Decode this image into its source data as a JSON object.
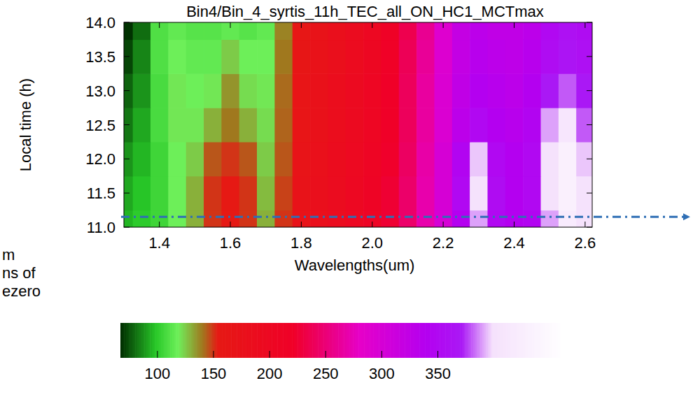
{
  "chart_data": {
    "type": "heatmap",
    "title": "Bin4/Bin_4_syrtis_11h_TEC_all_ON_HC1_MCTmax",
    "x_label": "Wavelengths(um)",
    "y_label": "Local time (h)",
    "x": [
      1.3,
      1.35,
      1.4,
      1.45,
      1.5,
      1.55,
      1.6,
      1.65,
      1.7,
      1.75,
      1.8,
      1.85,
      1.9,
      1.95,
      2.0,
      2.05,
      2.1,
      2.15,
      2.2,
      2.25,
      2.3,
      2.35,
      2.4,
      2.45,
      2.5,
      2.55,
      2.6
    ],
    "y": [
      11.0,
      11.5,
      12.0,
      12.5,
      13.0,
      13.5,
      14.0
    ],
    "values": [
      [
        95,
        100,
        105,
        118,
        130,
        150,
        155,
        150,
        130,
        150,
        170,
        180,
        190,
        200,
        210,
        225,
        245,
        270,
        300,
        340,
        390,
        350,
        340,
        345,
        390,
        420,
        400
      ],
      [
        92,
        98,
        105,
        118,
        130,
        150,
        155,
        150,
        128,
        148,
        170,
        180,
        190,
        200,
        210,
        225,
        245,
        270,
        300,
        350,
        400,
        355,
        340,
        350,
        400,
        430,
        400
      ],
      [
        88,
        95,
        105,
        118,
        125,
        145,
        150,
        145,
        125,
        145,
        168,
        178,
        188,
        198,
        208,
        222,
        242,
        268,
        300,
        345,
        395,
        350,
        340,
        350,
        400,
        430,
        395
      ],
      [
        82,
        92,
        108,
        120,
        120,
        130,
        140,
        130,
        122,
        143,
        165,
        175,
        185,
        195,
        205,
        220,
        240,
        265,
        295,
        330,
        350,
        340,
        335,
        345,
        390,
        410,
        380
      ],
      [
        78,
        88,
        108,
        120,
        118,
        120,
        135,
        122,
        120,
        142,
        165,
        175,
        185,
        195,
        205,
        220,
        240,
        265,
        295,
        325,
        340,
        335,
        330,
        340,
        370,
        380,
        370
      ],
      [
        72,
        85,
        110,
        118,
        115,
        115,
        125,
        118,
        118,
        140,
        162,
        172,
        182,
        192,
        202,
        218,
        238,
        262,
        292,
        322,
        335,
        330,
        328,
        335,
        355,
        365,
        360
      ],
      [
        68,
        80,
        110,
        115,
        112,
        112,
        115,
        112,
        115,
        138,
        160,
        170,
        180,
        190,
        200,
        215,
        235,
        260,
        290,
        320,
        330,
        325,
        325,
        330,
        350,
        360,
        355
      ]
    ],
    "xlim": [
      1.3,
      2.62
    ],
    "ylim": [
      11,
      14
    ],
    "xticks": [
      1.4,
      1.6,
      1.8,
      {
        "value": 2.0,
        "label": "2.0"
      },
      2.2,
      2.4,
      2.6
    ],
    "yticks": [
      {
        "value": 11,
        "label": "11.0"
      },
      11.5,
      {
        "value": 12,
        "label": "12.0"
      },
      12.5,
      {
        "value": 13,
        "label": "13.0"
      },
      13.5,
      {
        "value": 14,
        "label": "14.0"
      }
    ],
    "colorbar_range": [
      67,
      462
    ],
    "colorbar_ticks": [
      100,
      150,
      200,
      250,
      300,
      350
    ],
    "reference_line": 11.15,
    "annotations": [
      "m",
      "ns of",
      "ezero"
    ]
  }
}
